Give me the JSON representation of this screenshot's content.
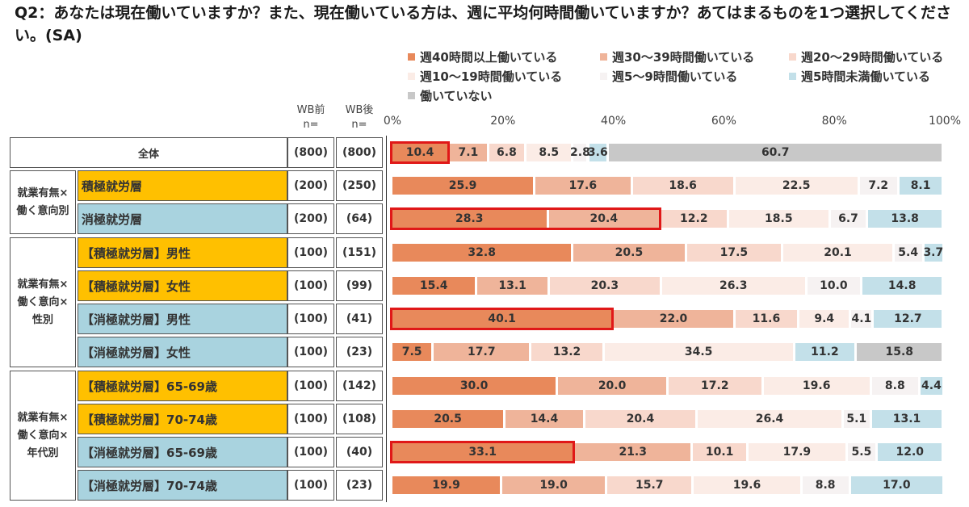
{
  "title": "Q2：あなたは現在働いていますか？また、現在働いている方は、週に平均何時間働いていますか？あてはまるものを1つ選択してください。(SA)",
  "columns": {
    "wb_before": "WB前",
    "wb_after": "WB後",
    "n_label": "n="
  },
  "colors": {
    "yellow": "#ffc000",
    "blue": "#a9d3df",
    "series": [
      "#e8895b",
      "#efb49a",
      "#f8d8cc",
      "#fbece6",
      "#f6f2f2",
      "#c3e0e9",
      "#c8c8c8"
    ],
    "highlight": "#e01818"
  },
  "group_labels": [
    {
      "text": "就業有無×働く意向別"
    },
    {
      "text": "就業有無×働く意向×性別"
    },
    {
      "text": "就業有無×働く意向×年代別"
    }
  ],
  "chart_data": {
    "type": "bar",
    "orientation": "horizontal",
    "stacked": true,
    "xlim": [
      0,
      100
    ],
    "x_ticks": [
      "0%",
      "20%",
      "40%",
      "60%",
      "80%",
      "100%"
    ],
    "legend_position": "top",
    "series_names": [
      "週40時間以上働いている",
      "週30～39時間働いている",
      "週20～29時間働いている",
      "週10～19時間働いている",
      "週5～9時間働いている",
      "週5時間未満働いている",
      "働いていない"
    ],
    "rows": [
      {
        "label": "全体",
        "n_before": "(800)",
        "n_after": "(800)",
        "values": [
          10.4,
          7.1,
          6.8,
          8.5,
          2.8,
          3.6,
          60.7
        ],
        "highlight": [
          0,
          0
        ]
      },
      {
        "label": "積極就労層",
        "n_before": "(200)",
        "n_after": "(250)",
        "values": [
          25.9,
          17.6,
          18.6,
          22.5,
          7.2,
          8.1,
          0
        ],
        "color": "yellow"
      },
      {
        "label": "消極就労層",
        "n_before": "(200)",
        "n_after": "(64)",
        "values": [
          28.3,
          20.4,
          12.2,
          18.5,
          6.7,
          13.8,
          0
        ],
        "color": "blue",
        "highlight": [
          0,
          1
        ]
      },
      {
        "label": "【積極就労層】男性",
        "n_before": "(100)",
        "n_after": "(151)",
        "values": [
          32.8,
          20.5,
          17.5,
          20.1,
          5.4,
          3.7,
          0
        ],
        "color": "yellow"
      },
      {
        "label": "【積極就労層】女性",
        "n_before": "(100)",
        "n_after": "(99)",
        "values": [
          15.4,
          13.1,
          20.3,
          26.3,
          10.0,
          14.8,
          0
        ],
        "color": "yellow"
      },
      {
        "label": "【消極就労層】男性",
        "n_before": "(100)",
        "n_after": "(41)",
        "values": [
          40.1,
          22.0,
          11.6,
          9.4,
          4.1,
          12.7,
          0
        ],
        "color": "blue",
        "highlight": [
          0,
          0
        ]
      },
      {
        "label": "【消極就労層】女性",
        "n_before": "(100)",
        "n_after": "(23)",
        "values": [
          7.5,
          17.7,
          13.2,
          34.5,
          0,
          11.2,
          15.8
        ],
        "color": "blue"
      },
      {
        "label": "【積極就労層】65-69歳",
        "n_before": "(100)",
        "n_after": "(142)",
        "values": [
          30.0,
          20.0,
          17.2,
          19.6,
          8.8,
          4.4,
          0
        ],
        "color": "yellow"
      },
      {
        "label": "【積極就労層】70-74歳",
        "n_before": "(100)",
        "n_after": "(108)",
        "values": [
          20.5,
          14.4,
          20.4,
          26.4,
          5.1,
          13.1,
          0
        ],
        "color": "yellow"
      },
      {
        "label": "【消極就労層】65-69歳",
        "n_before": "(100)",
        "n_after": "(40)",
        "values": [
          33.1,
          21.3,
          10.1,
          17.9,
          5.5,
          12.0,
          0
        ],
        "color": "blue",
        "highlight": [
          0,
          0
        ]
      },
      {
        "label": "【消極就労層】70-74歳",
        "n_before": "(100)",
        "n_after": "(23)",
        "values": [
          19.9,
          19.0,
          15.7,
          19.6,
          8.8,
          17.0,
          0
        ],
        "color": "blue"
      }
    ]
  }
}
